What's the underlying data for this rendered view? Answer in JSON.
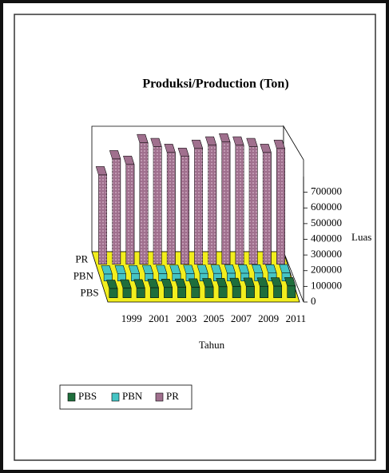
{
  "chart_data": {
    "type": "bar3d",
    "title": "Produksi/Production (Ton)",
    "categories": [
      null,
      "1999",
      null,
      "2001",
      null,
      "2003",
      null,
      "2005",
      null,
      "2007",
      null,
      "2009",
      null,
      "2011"
    ],
    "series": [
      {
        "name": "PBS",
        "color": "#1f6e3c",
        "values": [
          60000,
          62000,
          63000,
          65000,
          66000,
          67000,
          68000,
          70000,
          71000,
          72000,
          73000,
          74000,
          75000,
          76000
        ]
      },
      {
        "name": "PBN",
        "color": "#45c4c4",
        "values": [
          45000,
          46000,
          46000,
          47000,
          47000,
          48000,
          48000,
          49000,
          49000,
          50000,
          50000,
          51000,
          51000,
          52000
        ]
      },
      {
        "name": "PR",
        "color": "#a0708e",
        "values": [
          570000,
          672000,
          637000,
          775000,
          750000,
          713000,
          688000,
          739000,
          760000,
          780000,
          760000,
          750000,
          713000,
          739000
        ]
      }
    ],
    "ylim": [
      0,
      800000
    ],
    "yticks": [
      0,
      100000,
      200000,
      300000,
      400000,
      500000,
      600000,
      700000
    ],
    "x_label": "Tahun",
    "y_label": "Luas",
    "legend": "bottom-left"
  }
}
